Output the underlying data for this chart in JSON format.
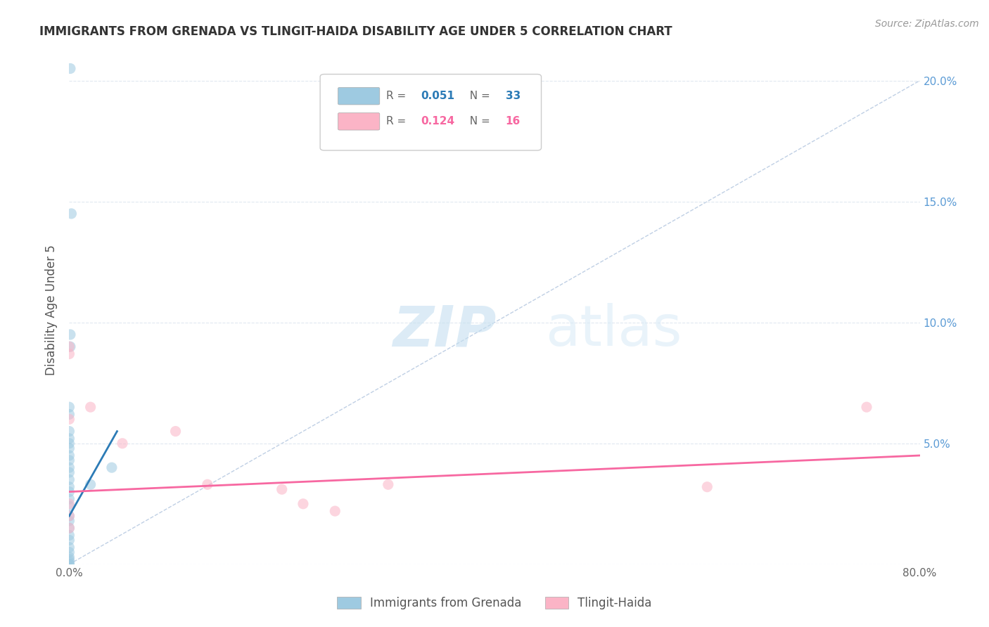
{
  "title": "IMMIGRANTS FROM GRENADA VS TLINGIT-HAIDA DISABILITY AGE UNDER 5 CORRELATION CHART",
  "source": "Source: ZipAtlas.com",
  "ylabel": "Disability Age Under 5",
  "watermark_zip": "ZIP",
  "watermark_atlas": "atlas",
  "legend_label_blue": "Immigrants from Grenada",
  "legend_label_pink": "Tlingit-Haida",
  "xlim": [
    0.0,
    0.8
  ],
  "ylim": [
    0.0,
    0.21
  ],
  "blue_scatter_x": [
    0.001,
    0.002,
    0.001,
    0.001,
    0.0,
    0.0,
    0.0,
    0.0,
    0.0,
    0.0,
    0.0,
    0.0,
    0.0,
    0.0,
    0.0,
    0.0,
    0.0,
    0.0,
    0.0,
    0.0,
    0.0,
    0.0,
    0.0,
    0.0,
    0.0,
    0.0,
    0.0,
    0.0,
    0.0,
    0.0,
    0.0,
    0.04,
    0.02
  ],
  "blue_scatter_y": [
    0.205,
    0.145,
    0.095,
    0.09,
    0.065,
    0.062,
    0.055,
    0.052,
    0.05,
    0.048,
    0.045,
    0.043,
    0.04,
    0.038,
    0.035,
    0.032,
    0.03,
    0.027,
    0.024,
    0.02,
    0.018,
    0.015,
    0.012,
    0.01,
    0.007,
    0.005,
    0.003,
    0.002,
    0.001,
    0.0,
    0.0,
    0.04,
    0.033
  ],
  "pink_scatter_x": [
    0.0,
    0.0,
    0.0,
    0.02,
    0.05,
    0.1,
    0.13,
    0.2,
    0.22,
    0.25,
    0.3,
    0.6,
    0.75,
    0.0,
    0.0,
    0.0
  ],
  "pink_scatter_y": [
    0.09,
    0.087,
    0.06,
    0.065,
    0.05,
    0.055,
    0.033,
    0.031,
    0.025,
    0.022,
    0.033,
    0.032,
    0.065,
    0.025,
    0.02,
    0.015
  ],
  "blue_line_x": [
    0.0,
    0.045
  ],
  "blue_line_y": [
    0.02,
    0.055
  ],
  "pink_line_x": [
    0.0,
    0.8
  ],
  "pink_line_y": [
    0.03,
    0.045
  ],
  "diagonal_line_x": [
    0.0,
    0.8
  ],
  "diagonal_line_y": [
    0.0,
    0.2
  ],
  "blue_color": "#9ecae1",
  "pink_color": "#fbb4c6",
  "blue_line_color": "#2c7bb6",
  "pink_line_color": "#f768a1",
  "diagonal_color": "#b0c4de",
  "background_color": "#ffffff",
  "grid_color": "#e0e8f0",
  "title_color": "#333333",
  "right_axis_color": "#5b9bd5",
  "scatter_alpha": 0.55,
  "scatter_size": 120,
  "r_blue": "0.051",
  "n_blue": "33",
  "r_pink": "0.124",
  "n_pink": "16"
}
